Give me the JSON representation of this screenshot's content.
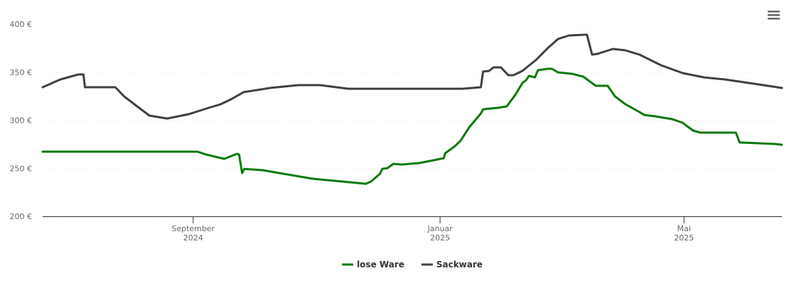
{
  "chart_data": {
    "type": "line",
    "ylim": [
      200,
      400
    ],
    "yticks": [
      {
        "value": 200,
        "label": "200 €"
      },
      {
        "value": 250,
        "label": "250 €"
      },
      {
        "value": 300,
        "label": "300 €"
      },
      {
        "value": 350,
        "label": "350 €"
      },
      {
        "value": 400,
        "label": "400 €"
      }
    ],
    "xlim": [
      2024.464,
      2025.461
    ],
    "xticks": [
      {
        "value": 2024.667,
        "label": "September 2024"
      },
      {
        "value": 2025,
        "label": "Januar 2025"
      },
      {
        "value": 2025.329,
        "label": "Mai 2025"
      }
    ],
    "grid": true,
    "legend": "bottom",
    "series": [
      {
        "name": "lose Ware",
        "color": "#0a7a0a",
        "x": [
          2024.464,
          2024.673,
          2024.685,
          2024.709,
          2024.726,
          2024.729,
          2024.733,
          2024.736,
          2024.761,
          2024.8,
          2024.828,
          2024.867,
          2024.9,
          2024.907,
          2024.919,
          2024.922,
          2024.929,
          2024.937,
          2024.948,
          2024.972,
          2024.991,
          2025.005,
          2025.007,
          2025.02,
          2025.028,
          2025.039,
          2025.055,
          2025.058,
          2025.078,
          2025.09,
          2025.102,
          2025.111,
          2025.116,
          2025.12,
          2025.128,
          2025.132,
          2025.145,
          2025.151,
          2025.159,
          2025.178,
          2025.193,
          2025.21,
          2025.226,
          2025.236,
          2025.25,
          2025.269,
          2025.275,
          2025.289,
          2025.313,
          2025.327,
          2025.341,
          2025.351,
          2025.399,
          2025.404,
          2025.452,
          2025.461
        ],
        "values": [
          267.2,
          267.2,
          264.2,
          259.8,
          265,
          264.2,
          245,
          249.4,
          248,
          242.8,
          239.1,
          236.2,
          233.9,
          236.2,
          244.3,
          249.4,
          250.2,
          254.6,
          253.9,
          255.4,
          258.3,
          260.5,
          265.7,
          273,
          279,
          292.3,
          307,
          311.4,
          312.9,
          314.4,
          327,
          338.7,
          341.7,
          346.1,
          344.6,
          352,
          353.5,
          353.5,
          349.8,
          348.3,
          345.4,
          335.8,
          335.8,
          324.7,
          316.6,
          308.5,
          305.5,
          304.1,
          301.1,
          297.4,
          289.3,
          287.1,
          287.1,
          276.8,
          275.3,
          274.5
        ]
      },
      {
        "name": "Sackware",
        "color": "#404040",
        "x": [
          2024.464,
          2024.488,
          2024.512,
          2024.519,
          2024.521,
          2024.562,
          2024.574,
          2024.589,
          2024.608,
          2024.632,
          2024.661,
          2024.685,
          2024.704,
          2024.718,
          2024.735,
          2024.771,
          2024.809,
          2024.838,
          2024.876,
          2024.982,
          2025.03,
          2025.055,
          2025.058,
          2025.066,
          2025.072,
          2025.082,
          2025.092,
          2025.099,
          2025.111,
          2025.13,
          2025.145,
          2025.159,
          2025.174,
          2025.198,
          2025.205,
          2025.212,
          2025.233,
          2025.25,
          2025.269,
          2025.298,
          2025.327,
          2025.356,
          2025.384,
          2025.423,
          2025.461
        ],
        "values": [
          334.3,
          342.4,
          347.6,
          347.6,
          334.3,
          334.3,
          324.7,
          315.9,
          304.8,
          301.8,
          306.3,
          312.2,
          316.6,
          321.8,
          329.2,
          333.6,
          336.5,
          336.5,
          332.8,
          332.8,
          332.8,
          334.3,
          350.6,
          351.3,
          355,
          355,
          346.9,
          346.9,
          351.3,
          363.1,
          374.9,
          384.5,
          388.2,
          389,
          368.3,
          369,
          374.2,
          372.7,
          368.3,
          357.2,
          349.1,
          344.6,
          342.4,
          338,
          333.6
        ]
      }
    ]
  }
}
